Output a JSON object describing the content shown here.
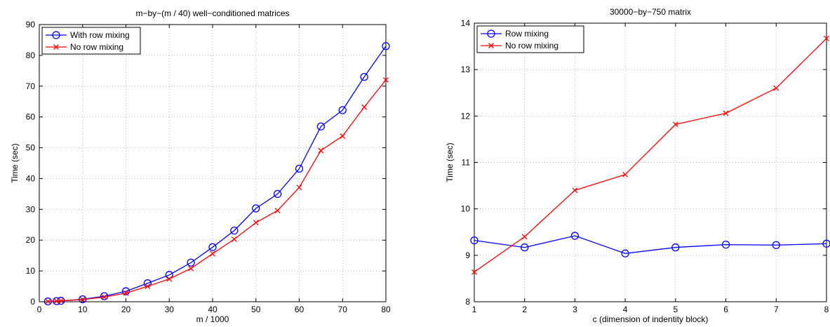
{
  "chart_data": [
    {
      "type": "line",
      "title": "m−by−(m / 40) well−conditioned matrices",
      "xlabel": "m / 1000",
      "ylabel": "Time (sec)",
      "xlim": [
        0,
        80
      ],
      "ylim": [
        0,
        90
      ],
      "xticks": [
        0,
        10,
        20,
        30,
        40,
        50,
        60,
        70,
        80
      ],
      "yticks": [
        0,
        10,
        20,
        30,
        40,
        50,
        60,
        70,
        80,
        90
      ],
      "grid": true,
      "legend_position": "top-left",
      "x": [
        2,
        4,
        5,
        10,
        15,
        20,
        25,
        30,
        35,
        40,
        45,
        50,
        55,
        60,
        65,
        70,
        75,
        80
      ],
      "series": [
        {
          "name": "With row mixing",
          "color": "#0000ff",
          "marker": "circle",
          "values": [
            0.1,
            0.2,
            0.3,
            0.8,
            1.8,
            3.4,
            6.0,
            8.7,
            12.7,
            17.7,
            23.1,
            30.3,
            35.0,
            43.2,
            56.9,
            62.2,
            73.0,
            83.0
          ]
        },
        {
          "name": "No row mixing",
          "color": "#ff0000",
          "marker": "x",
          "values": [
            0.1,
            0.2,
            0.3,
            0.7,
            1.5,
            2.8,
            5.0,
            7.4,
            10.8,
            15.6,
            20.3,
            25.7,
            29.6,
            37.1,
            49.1,
            53.8,
            63.2,
            72.0
          ]
        }
      ]
    },
    {
      "type": "line",
      "title": "30000−by−750 matrix",
      "xlabel": "c (dimension of indentity block)",
      "ylabel": "Time (sec)",
      "xlim": [
        1,
        8
      ],
      "ylim": [
        8,
        14
      ],
      "xticks": [
        1,
        2,
        3,
        4,
        5,
        6,
        7,
        8
      ],
      "yticks": [
        8,
        9,
        10,
        11,
        12,
        13,
        14
      ],
      "grid": true,
      "legend_position": "top-left",
      "x": [
        1,
        2,
        3,
        4,
        5,
        6,
        7,
        8
      ],
      "series": [
        {
          "name": "Row mixing",
          "color": "#0000ff",
          "marker": "circle",
          "values": [
            9.32,
            9.17,
            9.42,
            9.04,
            9.17,
            9.23,
            9.22,
            9.25
          ]
        },
        {
          "name": "No row mixing",
          "color": "#ff0000",
          "marker": "x",
          "values": [
            8.64,
            9.4,
            10.4,
            10.74,
            11.82,
            12.06,
            12.6,
            13.67
          ]
        }
      ]
    }
  ]
}
